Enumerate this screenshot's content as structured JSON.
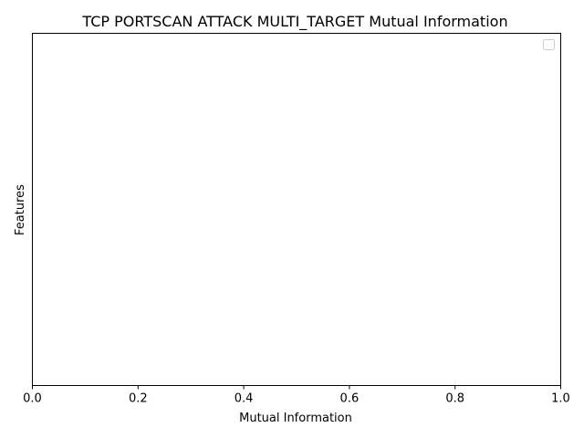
{
  "chart_data": {
    "type": "bar",
    "orientation": "horizontal",
    "title": "TCP PORTSCAN ATTACK MULTI_TARGET Mutual Information",
    "xlabel": "Mutual Information",
    "ylabel": "Features",
    "xlim": [
      0,
      1
    ],
    "xticks": [
      "0.0",
      "0.2",
      "0.4",
      "0.6",
      "0.8",
      "1.0"
    ],
    "categories": [],
    "values": [],
    "grid": false,
    "legend": {
      "placement": "upper right",
      "entries": []
    },
    "colors": {
      "axis": "#000000",
      "background": "#ffffff",
      "legend_border": "#cccccc"
    }
  }
}
